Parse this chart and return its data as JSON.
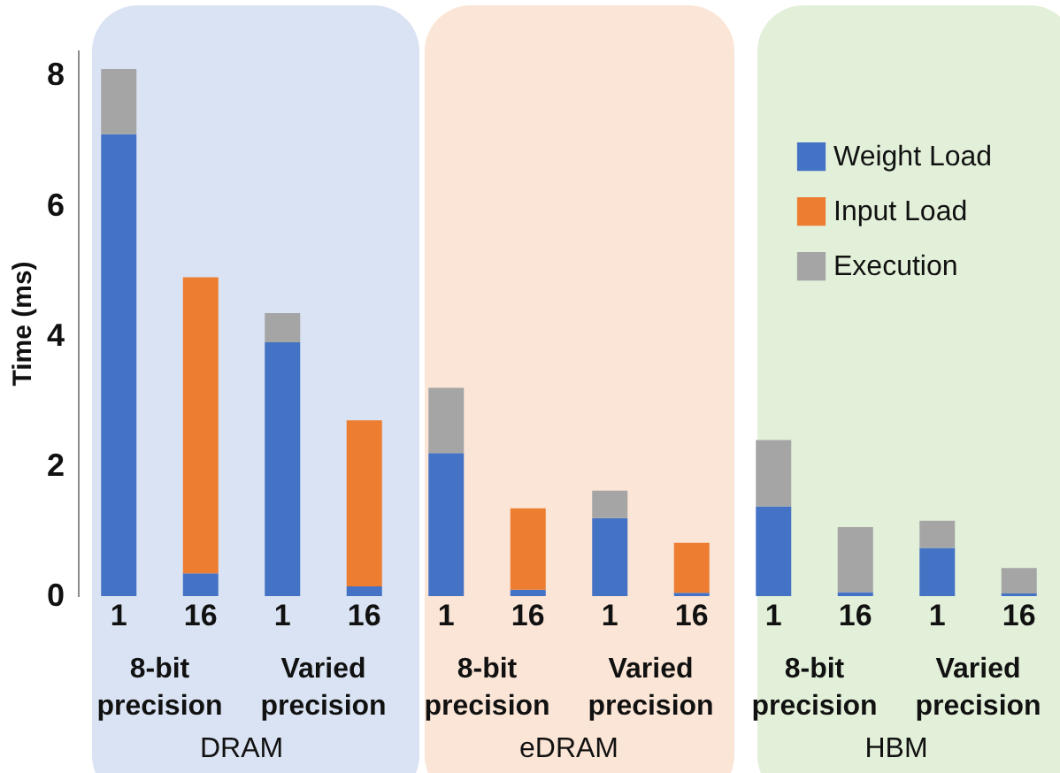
{
  "chart_data": {
    "type": "bar",
    "stacked": true,
    "ylabel": "Time (ms)",
    "categories": [
      "1",
      "16",
      "1",
      "16",
      "1",
      "16",
      "1",
      "16",
      "1",
      "16",
      "1",
      "16"
    ],
    "series": [
      {
        "name": "Weight Load",
        "color": "#4472c4",
        "values": [
          7.1,
          0.35,
          3.9,
          0.15,
          2.2,
          0.1,
          1.2,
          0.05,
          1.38,
          0.06,
          0.74,
          0.04
        ]
      },
      {
        "name": "Input Load",
        "color": "#ed7d31",
        "values": [
          null,
          4.55,
          null,
          2.55,
          null,
          1.25,
          null,
          0.77,
          null,
          null,
          null,
          null
        ]
      },
      {
        "name": "Execution",
        "color": "#a5a5a5",
        "values": [
          1.0,
          null,
          0.45,
          null,
          1.0,
          null,
          0.42,
          null,
          1.02,
          1.0,
          0.42,
          0.39
        ]
      }
    ],
    "ylim": [
      0,
      8.4
    ],
    "yticks": [
      0,
      2,
      4,
      6,
      8
    ],
    "legend": "top right",
    "annotations": [
      "8-bit precision",
      "Varied precision",
      "DRAM",
      "8-bit precision",
      "Varied precision",
      "eDRAM",
      "8-bit precision",
      "Varied precision",
      "HBM"
    ]
  }
}
